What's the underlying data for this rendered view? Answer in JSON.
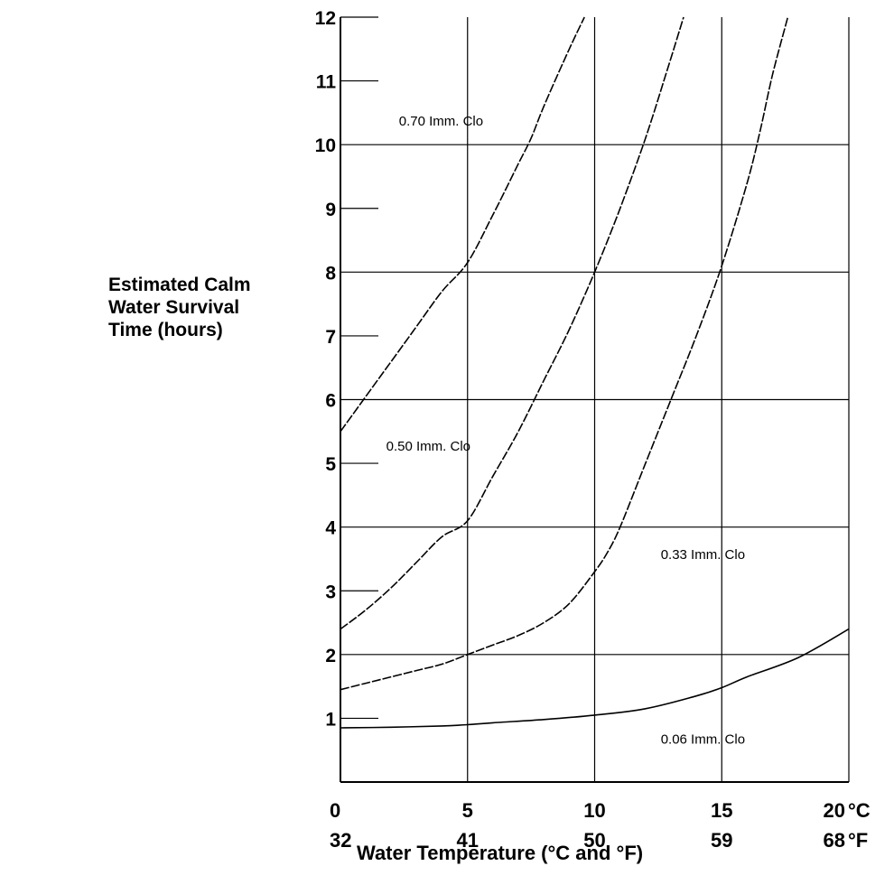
{
  "chart_data": {
    "type": "line",
    "title": "",
    "ylabel_lines": [
      "Estimated Calm",
      "Water Survival",
      "Time (hours)"
    ],
    "xlabel": "Water Temperature (°C and °F)",
    "xlim": [
      0,
      20
    ],
    "ylim": [
      0,
      12
    ],
    "x_ticks_c": [
      "0",
      "5",
      "10",
      "15",
      "20"
    ],
    "x_ticks_f": [
      "32",
      "41",
      "50",
      "59",
      "68"
    ],
    "x_unit_c": "°C",
    "x_unit_f": "°F",
    "y_ticks": [
      "1",
      "2",
      "3",
      "4",
      "5",
      "6",
      "7",
      "8",
      "9",
      "10",
      "11",
      "12"
    ],
    "grid": true,
    "series": [
      {
        "name": "0.70 Imm. Clo",
        "label_pos": {
          "x": 2.3,
          "y": 10.3
        },
        "x": [
          0,
          1,
          2,
          3,
          4,
          5,
          6,
          7,
          7.5,
          8,
          9,
          9.6
        ],
        "y": [
          5.5,
          6.05,
          6.6,
          7.15,
          7.7,
          8.15,
          8.9,
          9.7,
          10.1,
          10.6,
          11.5,
          12
        ]
      },
      {
        "name": "0.50 Imm. Clo",
        "label_pos": {
          "x": 1.8,
          "y": 5.2
        },
        "x": [
          0,
          1,
          2,
          3,
          4,
          5,
          6,
          7,
          8,
          9,
          10,
          11,
          12,
          12.8,
          13.5
        ],
        "y": [
          2.4,
          2.7,
          3.05,
          3.45,
          3.85,
          4.1,
          4.8,
          5.5,
          6.3,
          7.1,
          8.0,
          9.0,
          10.1,
          11.1,
          12
        ]
      },
      {
        "name": "0.33 Imm. Clo",
        "label_pos": {
          "x": 12.6,
          "y": 3.5
        },
        "x": [
          0,
          1,
          2,
          3,
          4,
          5,
          6,
          7,
          8,
          9,
          10,
          10.5,
          11,
          12,
          13,
          14,
          15,
          16,
          16.5,
          17,
          17.6
        ],
        "y": [
          1.45,
          1.55,
          1.65,
          1.75,
          1.85,
          2.0,
          2.15,
          2.3,
          2.5,
          2.8,
          3.3,
          3.6,
          4.0,
          5.0,
          6.0,
          7.0,
          8.1,
          9.4,
          10.2,
          11.1,
          12
        ]
      },
      {
        "name": "0.06 Imm. Clo",
        "label_pos": {
          "x": 12.6,
          "y": 0.6
        },
        "x": [
          0,
          2,
          4,
          5,
          6,
          8,
          10,
          12,
          14,
          15,
          16,
          18,
          20
        ],
        "y": [
          0.85,
          0.86,
          0.88,
          0.9,
          0.93,
          0.98,
          1.05,
          1.15,
          1.35,
          1.48,
          1.65,
          1.95,
          2.4
        ]
      }
    ]
  }
}
